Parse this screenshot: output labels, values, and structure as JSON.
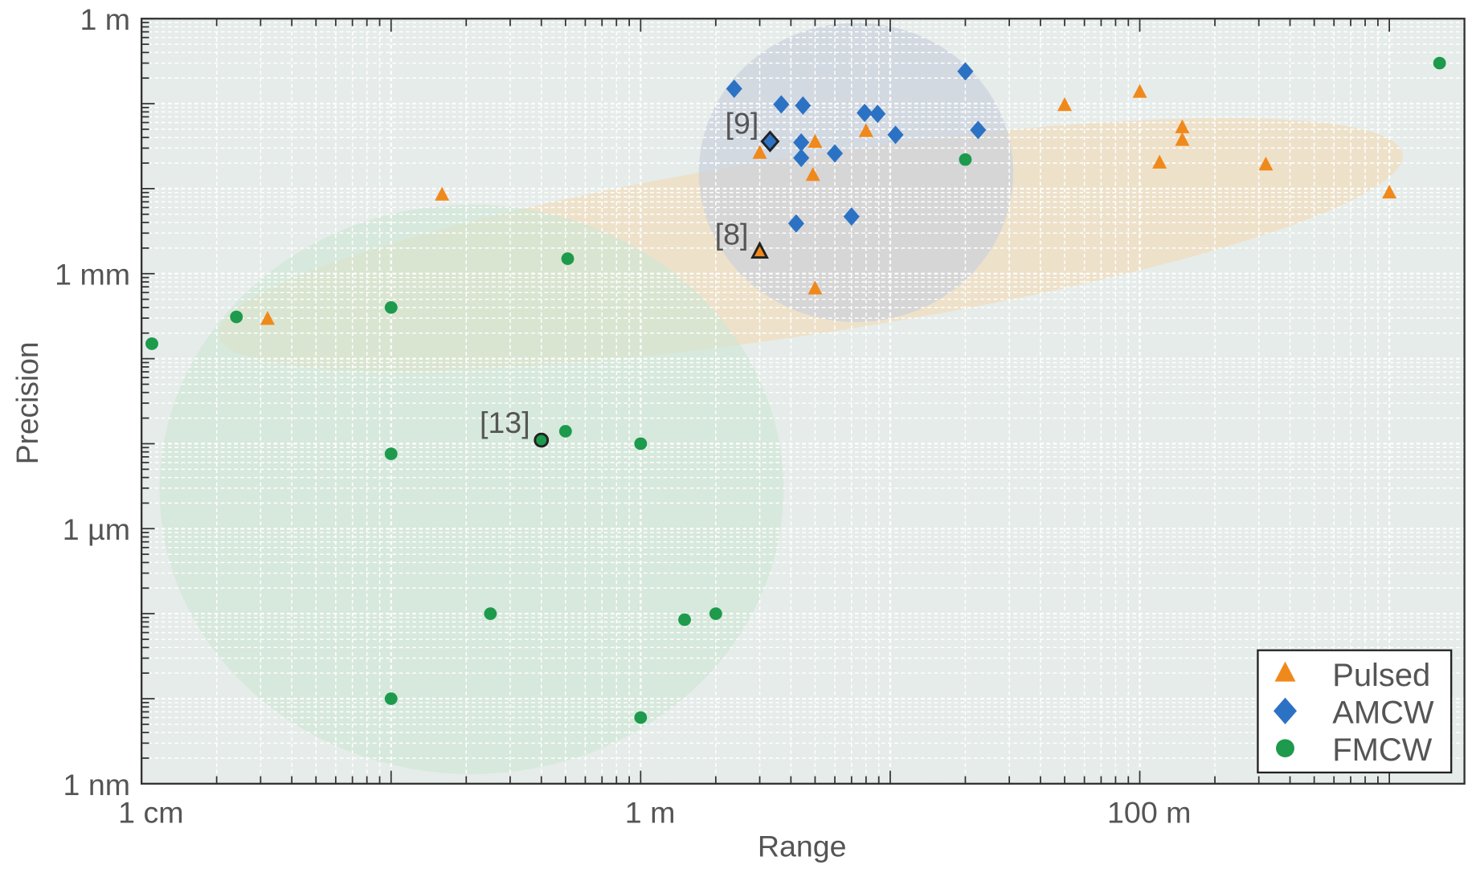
{
  "chart_data": {
    "type": "scatter",
    "title": "",
    "xlabel": "Range",
    "ylabel": "Precision",
    "xscale": "log",
    "yscale": "log",
    "xlim": [
      0.01,
      2000
    ],
    "ylim": [
      1e-09,
      1
    ],
    "x_unit": "m",
    "y_unit": "m",
    "grid": true,
    "legend_position": "bottom-right",
    "x_ticks": [
      {
        "value": 0.01,
        "label": "1 cm"
      },
      {
        "value": 1,
        "label": "1 m"
      },
      {
        "value": 100,
        "label": "100 m"
      }
    ],
    "y_ticks": [
      {
        "value": 1,
        "label": "1 m"
      },
      {
        "value": 0.001,
        "label": "1 mm"
      },
      {
        "value": 1e-06,
        "label": "1 µm"
      },
      {
        "value": 1e-09,
        "label": "1 nm"
      }
    ],
    "series": [
      {
        "name": "Pulsed",
        "marker": "triangle",
        "color": "#f0891c",
        "points": [
          [
            0.032,
            0.00029
          ],
          [
            0.16,
            0.0084
          ],
          [
            3.0,
            0.026
          ],
          [
            3.0,
            0.0018
          ],
          [
            5.0,
            0.035
          ],
          [
            4.9,
            0.0143
          ],
          [
            5.0,
            0.00066
          ],
          [
            8.0,
            0.047
          ],
          [
            50,
            0.095
          ],
          [
            100,
            0.136
          ],
          [
            148,
            0.052
          ],
          [
            148,
            0.037
          ],
          [
            120,
            0.02
          ],
          [
            320,
            0.019
          ],
          [
            1000,
            0.0089
          ]
        ],
        "region": {
          "center": [
            4.8,
            0.0022
          ],
          "fill": "#f3dcb8"
        }
      },
      {
        "name": "AMCW",
        "marker": "diamond",
        "color": "#2c72c4",
        "points": [
          [
            2.37,
            0.15
          ],
          [
            3.66,
            0.098
          ],
          [
            4.47,
            0.095
          ],
          [
            3.3,
            0.036
          ],
          [
            4.4,
            0.035
          ],
          [
            4.4,
            0.023
          ],
          [
            6.0,
            0.026
          ],
          [
            7.9,
            0.078
          ],
          [
            8.9,
            0.076
          ],
          [
            10.5,
            0.043
          ],
          [
            20,
            0.24
          ],
          [
            22.5,
            0.049
          ],
          [
            4.2,
            0.0039
          ],
          [
            7.0,
            0.0047
          ]
        ],
        "region": {
          "center": [
            7.3,
            0.0155
          ],
          "fill": "#c9cfdc"
        }
      },
      {
        "name": "FMCW",
        "marker": "circle",
        "color": "#1d9a4c",
        "points": [
          [
            0.011,
            0.00015
          ],
          [
            0.024,
            0.00031
          ],
          [
            0.1,
            0.0004
          ],
          [
            0.1,
            7.6e-06
          ],
          [
            0.1,
            1e-08
          ],
          [
            0.25,
            1e-07
          ],
          [
            0.4,
            1.1e-05
          ],
          [
            0.5,
            1.4e-05
          ],
          [
            0.51,
            0.0015
          ],
          [
            1.0,
            1e-05
          ],
          [
            1.0,
            6e-09
          ],
          [
            1.5,
            8.5e-08
          ],
          [
            2.0,
            1e-07
          ],
          [
            20,
            0.022
          ],
          [
            1590,
            0.3
          ]
        ],
        "region": {
          "center": [
            0.21,
            2.9e-06
          ],
          "fill": "#cfe6d4"
        }
      }
    ],
    "annotations": [
      {
        "label": "[9]",
        "series": "AMCW",
        "point": [
          3.3,
          0.036
        ]
      },
      {
        "label": "[8]",
        "series": "Pulsed",
        "point": [
          3.0,
          0.0018
        ]
      },
      {
        "label": "[13]",
        "series": "FMCW",
        "point": [
          0.4,
          1.1e-05
        ]
      }
    ]
  }
}
